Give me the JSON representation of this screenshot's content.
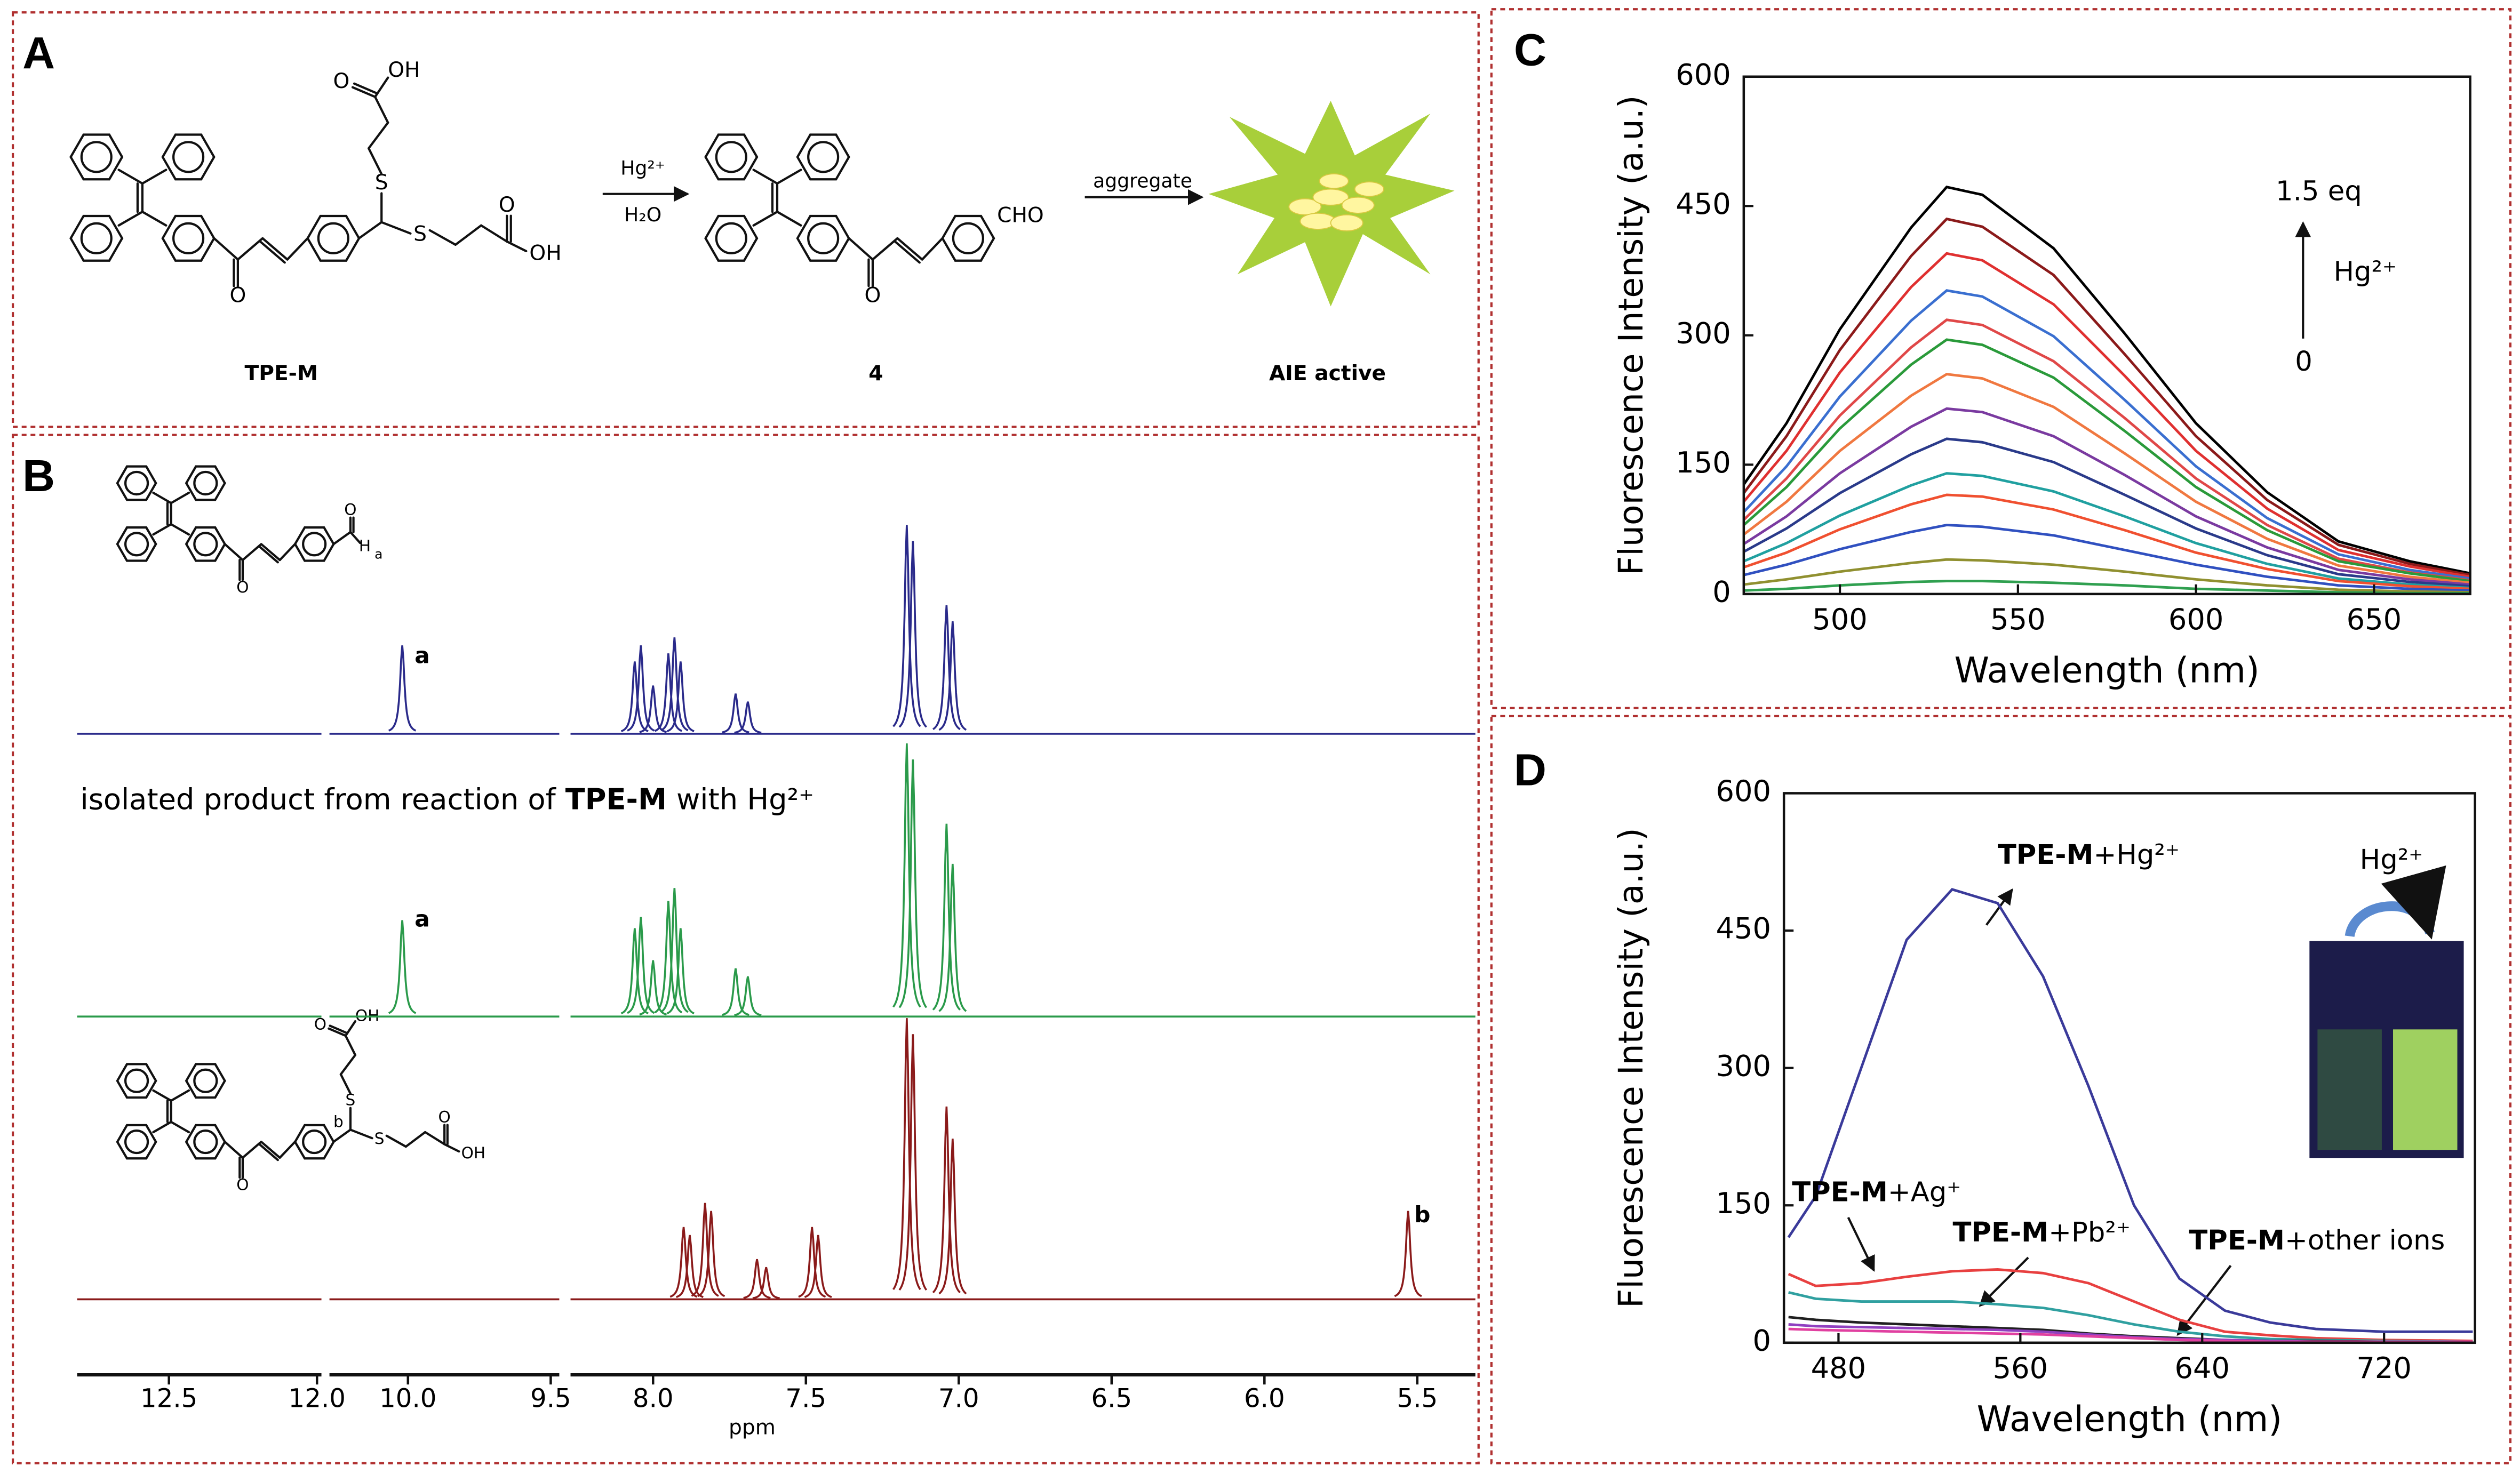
{
  "panel_labels": [
    "A",
    "B",
    "C",
    "D"
  ],
  "scheme": {
    "reagent": "Hg²⁺",
    "solvent": "H₂O",
    "step2": "aggregate",
    "compound_labels": [
      "TPE-M",
      "4",
      "AIE active"
    ],
    "atoms_tpem": [
      "O",
      "S",
      "OH",
      "O",
      "S",
      "O",
      "OH"
    ],
    "atoms_4": [
      "O",
      "CHO"
    ]
  },
  "nmr": {
    "x_label": "ppm",
    "segments": [
      {
        "xlim": [
          12.81,
          11.985
        ],
        "xticks": [
          12.5,
          {
            "value": 12,
            "label": "12.0"
          }
        ]
      },
      {
        "xlim": [
          10.275,
          9.47
        ],
        "xticks": [
          {
            "value": 10,
            "label": "10.0"
          },
          9.5
        ]
      },
      {
        "xlim": [
          8.27,
          5.31
        ],
        "xticks": [
          {
            "value": 8,
            "label": "8.0"
          },
          7.5,
          {
            "value": 7,
            "label": "7.0"
          },
          6.5,
          {
            "value": 6,
            "label": "6.0"
          },
          5.5
        ]
      }
    ],
    "caption": [
      "isolated product from reaction of",
      "TPE-M",
      "with Hg²⁺"
    ],
    "peak_labels": [
      "a",
      "a",
      "b"
    ],
    "structure_top_atoms": [
      "O",
      "O",
      "H",
      "a"
    ],
    "structure_bottom_atoms": [
      "O",
      "S",
      "OH",
      "O",
      "S",
      "O",
      "OH",
      "b"
    ],
    "spectra": [
      {
        "color": "#2a2a8a",
        "ppm": [
          10.02,
          8.06,
          8.04,
          8.0,
          7.95,
          7.93,
          7.91,
          7.73,
          7.69,
          7.17,
          7.15,
          7.04,
          7.02
        ],
        "height": [
          55,
          45,
          55,
          30,
          50,
          60,
          45,
          25,
          20,
          130,
          120,
          80,
          70
        ]
      },
      {
        "color": "#2a9a4a",
        "ppm": [
          10.02,
          8.06,
          8.04,
          8.0,
          7.95,
          7.93,
          7.91,
          7.73,
          7.69,
          7.17,
          7.15,
          7.04,
          7.02
        ],
        "height": [
          60,
          55,
          62,
          35,
          72,
          80,
          55,
          30,
          25,
          170,
          160,
          120,
          95
        ]
      },
      {
        "color": "#8a1a1a",
        "ppm": [
          7.9,
          7.88,
          7.83,
          7.81,
          7.66,
          7.63,
          7.48,
          7.46,
          7.17,
          7.15,
          7.04,
          7.02,
          5.53
        ],
        "height": [
          45,
          40,
          60,
          55,
          25,
          20,
          45,
          40,
          175,
          165,
          120,
          100,
          55
        ]
      }
    ]
  },
  "chart_data": [
    {
      "type": "line",
      "x_label": "Wavelength (nm)",
      "y_label": "Fluorescence Intensity (a.u.)",
      "xlim": [
        473,
        677
      ],
      "xticks": [
        500,
        550,
        600,
        650
      ],
      "ylim": [
        0,
        600
      ],
      "yticks": [
        0,
        150,
        300,
        450,
        600
      ],
      "annotations": [
        "1.5 eq",
        "Hg²⁺",
        "0"
      ],
      "x": [
        473,
        485,
        500,
        520,
        530,
        540,
        560,
        580,
        600,
        620,
        640,
        660,
        677
      ],
      "series": [
        {
          "color": "#000000",
          "values": [
            127,
            198,
            307,
            425,
            472,
            463,
            401,
            302,
            198,
            118,
            61,
            38,
            24
          ]
        },
        {
          "color": "#8b1a1a",
          "values": [
            117,
            183,
            283,
            392,
            435,
            426,
            370,
            278,
            183,
            109,
            57,
            35,
            22
          ]
        },
        {
          "color": "#e03030",
          "values": [
            107,
            166,
            257,
            356,
            395,
            387,
            336,
            253,
            166,
            99,
            51,
            32,
            20
          ]
        },
        {
          "color": "#3a6fd0",
          "values": [
            95,
            148,
            229,
            317,
            352,
            345,
            299,
            225,
            148,
            88,
            46,
            28,
            18
          ]
        },
        {
          "color": "#e04848",
          "values": [
            86,
            134,
            207,
            286,
            318,
            312,
            270,
            204,
            134,
            80,
            41,
            25,
            16
          ]
        },
        {
          "color": "#2a9a3a",
          "values": [
            80,
            124,
            192,
            266,
            295,
            289,
            251,
            189,
            124,
            74,
            38,
            24,
            15
          ]
        },
        {
          "color": "#f07840",
          "values": [
            69,
            107,
            166,
            230,
            255,
            250,
            217,
            163,
            107,
            64,
            33,
            20,
            13
          ]
        },
        {
          "color": "#7a3aa0",
          "values": [
            58,
            90,
            140,
            194,
            215,
            211,
            183,
            138,
            90,
            54,
            28,
            17,
            11
          ]
        },
        {
          "color": "#2a3a8a",
          "values": [
            49,
            76,
            117,
            162,
            180,
            176,
            153,
            115,
            76,
            45,
            23,
            14,
            9
          ]
        },
        {
          "color": "#20a0a0",
          "values": [
            38,
            59,
            91,
            126,
            140,
            137,
            119,
            90,
            59,
            35,
            18,
            11,
            7
          ]
        },
        {
          "color": "#f05030",
          "values": [
            31,
            48,
            75,
            104,
            115,
            113,
            98,
            74,
            48,
            29,
            15,
            9,
            6
          ]
        },
        {
          "color": "#3050c0",
          "values": [
            22,
            34,
            52,
            72,
            80,
            78,
            68,
            51,
            34,
            20,
            10,
            6,
            4
          ]
        },
        {
          "color": "#909030",
          "values": [
            11,
            17,
            26,
            36,
            40,
            39,
            34,
            26,
            17,
            10,
            5,
            3,
            2
          ]
        },
        {
          "color": "#30a050",
          "values": [
            4,
            6,
            10,
            14,
            15,
            15,
            13,
            10,
            6,
            4,
            2,
            1,
            1
          ]
        }
      ]
    },
    {
      "type": "line",
      "x_label": "Wavelength (nm)",
      "y_label": "Fluorescence Intensity (a.u.)",
      "xlim": [
        456,
        760
      ],
      "xticks": [
        480,
        560,
        640,
        720
      ],
      "ylim": [
        0,
        600
      ],
      "yticks": [
        0,
        150,
        300,
        450,
        600
      ],
      "annotations": [
        {
          "compound": "TPE-M",
          "ion": "+Hg²⁺"
        },
        {
          "compound": "TPE-M",
          "ion": "+Ag⁺"
        },
        {
          "compound": "TPE-M",
          "ion": "+Pb²⁺"
        },
        {
          "compound": "TPE-M",
          "ion": "+other ions"
        }
      ],
      "inset_label": "Hg²⁺",
      "x": [
        458,
        470,
        490,
        510,
        530,
        550,
        570,
        590,
        610,
        630,
        650,
        670,
        690,
        720,
        759
      ],
      "series": [
        {
          "color": "#3a3a9a",
          "values": [
            115,
            160,
            300,
            440,
            495,
            480,
            400,
            280,
            150,
            70,
            35,
            22,
            15,
            12,
            12
          ]
        },
        {
          "color": "#e84040",
          "values": [
            75,
            62,
            65,
            72,
            78,
            80,
            76,
            65,
            45,
            25,
            12,
            8,
            5,
            3,
            2
          ]
        },
        {
          "color": "#30a0a0",
          "values": [
            55,
            48,
            45,
            45,
            45,
            42,
            38,
            30,
            20,
            12,
            7,
            4,
            3,
            2,
            1
          ]
        },
        {
          "color": "#202020",
          "values": [
            28,
            25,
            22,
            20,
            18,
            16,
            14,
            10,
            7,
            5,
            3,
            2,
            2,
            1,
            1
          ]
        },
        {
          "color": "#9040c0",
          "values": [
            20,
            18,
            17,
            16,
            15,
            14,
            12,
            9,
            6,
            4,
            3,
            2,
            1,
            1,
            1
          ]
        },
        {
          "color": "#e040a0",
          "values": [
            15,
            14,
            13,
            12,
            11,
            10,
            9,
            7,
            5,
            3,
            2,
            1,
            1,
            1,
            1
          ]
        }
      ]
    }
  ]
}
